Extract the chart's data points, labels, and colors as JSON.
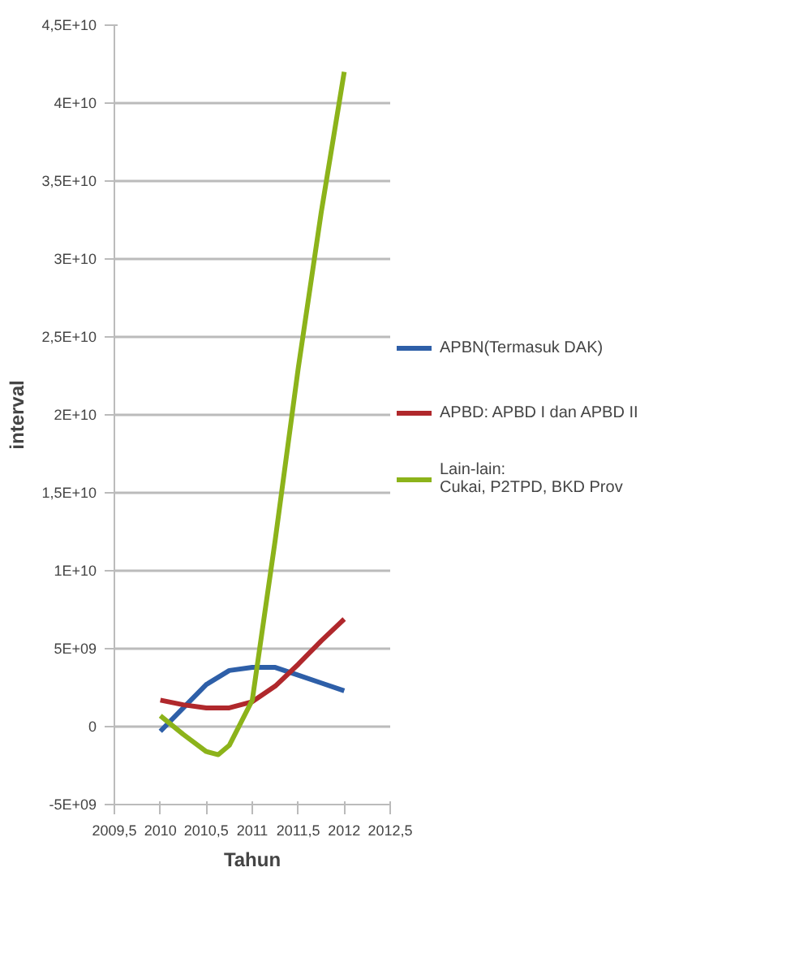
{
  "chart_data": {
    "type": "line",
    "xlabel": "Tahun",
    "ylabel": "interval",
    "xlim": [
      2009.5,
      2012.5
    ],
    "xticks": [
      {
        "value": 2009.5,
        "label": "2009,5"
      },
      2010,
      {
        "value": 2010.5,
        "label": "2010,5"
      },
      2011,
      {
        "value": 2011.5,
        "label": "2011,5"
      },
      2012,
      {
        "value": 2012.5,
        "label": "2012,5"
      }
    ],
    "ylim": [
      -5000000000,
      45000000000
    ],
    "yticks": [
      {
        "value": -5000000000,
        "label": "-5E+09"
      },
      0,
      {
        "value": 5000000000,
        "label": "5E+09"
      },
      {
        "value": 10000000000,
        "label": "1E+10"
      },
      {
        "value": 15000000000,
        "label": "1,5E+10"
      },
      {
        "value": 20000000000,
        "label": "2E+10"
      },
      {
        "value": 25000000000,
        "label": "2,5E+10"
      },
      {
        "value": 30000000000,
        "label": "3E+10"
      },
      {
        "value": 35000000000,
        "label": "3,5E+10"
      },
      {
        "value": 40000000000,
        "label": "4E+10"
      },
      {
        "value": 45000000000,
        "label": "4,5E+10"
      }
    ],
    "x": [
      2010,
      2010.25,
      2010.5,
      2010.75,
      2011,
      2011.25,
      2011.5,
      2011.75,
      2012
    ],
    "series": [
      {
        "name": "APBN(Termasuk DAK)",
        "color": "#2e5fa8",
        "values": [
          -300000000,
          1200000000,
          2700000000,
          3600000000,
          3800000000,
          3800000000,
          3300000000,
          2800000000,
          2300000000
        ]
      },
      {
        "name": "APBD: APBD I dan APBD II",
        "color": "#b0282c",
        "values": [
          1700000000,
          1400000000,
          1200000000,
          1200000000,
          1600000000,
          2600000000,
          4000000000,
          5500000000,
          6900000000
        ]
      },
      {
        "name": "Lain-lain:\nCukai, P2TPD, BKD Prov",
        "color": "#8cb31a",
        "x": [
          2010,
          2010.25,
          2010.5,
          2010.63,
          2010.75,
          2011,
          2011.25,
          2011.5,
          2011.75,
          2012
        ],
        "values": [
          700000000,
          -500000000,
          -1600000000,
          -1800000000,
          -1200000000,
          1700000000,
          12000000000,
          23000000000,
          33000000000,
          42000000000
        ]
      }
    ],
    "grid": "y",
    "legend": "right",
    "marker": "none",
    "line_style": "solid"
  }
}
